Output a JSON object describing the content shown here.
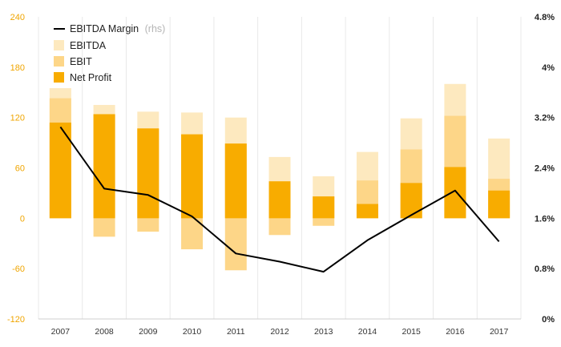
{
  "chart_data": {
    "type": "bar",
    "categories": [
      "2007",
      "2008",
      "2009",
      "2010",
      "2011",
      "2012",
      "2013",
      "2014",
      "2015",
      "2016",
      "2017"
    ],
    "series": [
      {
        "name": "EBITDA",
        "kind": "bar",
        "values": [
          155,
          135,
          127,
          126,
          120,
          73,
          50,
          79,
          119,
          160,
          95
        ],
        "color": "#fde9bf"
      },
      {
        "name": "EBIT",
        "kind": "bar",
        "values": [
          143,
          124,
          107,
          100,
          89,
          44,
          26,
          45,
          82,
          122,
          47
        ],
        "negative_values": [
          0,
          -22,
          -16,
          -37,
          -62,
          -20,
          -9,
          0,
          0,
          0,
          0
        ],
        "color": "#fdd688"
      },
      {
        "name": "Net Profit",
        "kind": "bar",
        "values": [
          114,
          124,
          107,
          100,
          89,
          44,
          26,
          17,
          42,
          61,
          33
        ],
        "color": "#f8ac00"
      },
      {
        "name": "EBITDA Margin",
        "suffix": "(rhs)",
        "kind": "line",
        "axis": "right",
        "values": [
          3.05,
          2.07,
          1.97,
          1.63,
          1.04,
          0.91,
          0.75,
          1.25,
          1.65,
          2.04,
          1.23
        ],
        "color": "#000000"
      }
    ],
    "left_axis": {
      "ticks": [
        "240",
        "180",
        "120",
        "60",
        "0",
        "-60",
        "-120"
      ],
      "values": [
        240,
        180,
        120,
        60,
        0,
        -60,
        -120
      ],
      "min": -120,
      "max": 240
    },
    "right_axis": {
      "ticks": [
        "4.8%",
        "4%",
        "3.2%",
        "2.4%",
        "1.6%",
        "0.8%",
        "0%"
      ],
      "values": [
        4.8,
        4,
        3.2,
        2.4,
        1.6,
        0.8,
        0
      ],
      "min": 0,
      "max": 4.8
    },
    "legend_position": "top-left",
    "grid": "vertical"
  }
}
